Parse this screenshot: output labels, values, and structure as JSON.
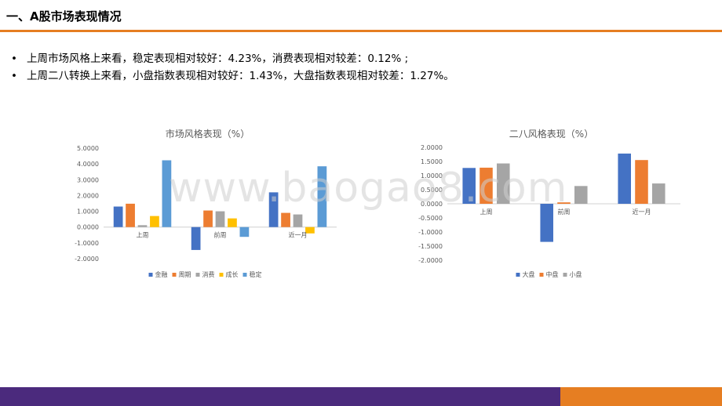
{
  "page_title": "一、A股市场表现情况",
  "bullets": [
    "上周市场风格上来看，稳定表现相对较好：4.23%，消费表现相对较差：0.12% ;",
    "上周二八转换上来看，小盘指数表现相对较好：1.43%，大盘指数表现相对较差：1.27%。"
  ],
  "bullet_symbol": "•",
  "watermark": "www.baogao8.com",
  "colors": {
    "accent": "#E67E22",
    "footer_purple": "#4B2A7D",
    "footer_orange": "#E67E22"
  },
  "chart_data": [
    {
      "type": "bar",
      "title": "市场风格表现（%）",
      "categories": [
        "上周",
        "前周",
        "近一月"
      ],
      "ylim": [
        -2,
        5
      ],
      "yticks": [
        "-2.0000",
        "-1.0000",
        "0.0000",
        "1.0000",
        "2.0000",
        "3.0000",
        "4.0000",
        "5.0000"
      ],
      "legend_position": "bottom",
      "grid": false,
      "series": [
        {
          "name": "金融",
          "color": "#4472C4",
          "values": [
            1.3,
            -1.45,
            2.2
          ]
        },
        {
          "name": "周期",
          "color": "#ED7D31",
          "values": [
            1.48,
            1.05,
            0.9
          ]
        },
        {
          "name": "消费",
          "color": "#A5A5A5",
          "values": [
            0.12,
            1.0,
            0.8
          ]
        },
        {
          "name": "成长",
          "color": "#FFC000",
          "values": [
            0.7,
            0.55,
            -0.4
          ]
        },
        {
          "name": "稳定",
          "color": "#5B9BD5",
          "values": [
            4.23,
            -0.62,
            3.85
          ]
        }
      ]
    },
    {
      "type": "bar",
      "title": "二八风格表现（%）",
      "categories": [
        "上周",
        "前周",
        "近一月"
      ],
      "ylim": [
        -2,
        2
      ],
      "yticks": [
        "-2.0000",
        "-1.5000",
        "-1.0000",
        "-0.5000",
        "0.0000",
        "0.5000",
        "1.0000",
        "1.5000",
        "2.0000"
      ],
      "legend_position": "bottom",
      "grid": false,
      "series": [
        {
          "name": "大盘",
          "color": "#4472C4",
          "values": [
            1.27,
            -1.35,
            1.78
          ]
        },
        {
          "name": "中盘",
          "color": "#ED7D31",
          "values": [
            1.28,
            0.05,
            1.55
          ]
        },
        {
          "name": "小盘",
          "color": "#A5A5A5",
          "values": [
            1.43,
            0.63,
            0.72
          ]
        }
      ]
    }
  ]
}
